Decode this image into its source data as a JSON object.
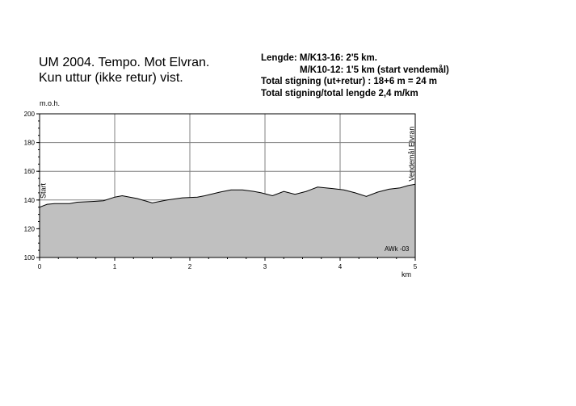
{
  "title_lines": [
    "UM 2004. Tempo.  Mot Elvran.",
    "Kun uttur (ikke retur) vist."
  ],
  "info_lines": [
    "Lengde: M/K13-16: 2'5 km.",
    "M/K10-12: 1'5 km (start vendemål)",
    "Total stigning (ut+retur) : 18+6 m = 24 m",
    "Total stigning/total lengde    2,4 m/km"
  ],
  "chart_data": {
    "type": "area",
    "ylabel": "m.o.h.",
    "xlabel": "km",
    "xlim": [
      0,
      5
    ],
    "ylim": [
      100,
      200
    ],
    "xticks": [
      "0",
      "1",
      "2",
      "3",
      "4",
      "5"
    ],
    "yticks": [
      "100",
      "120",
      "140",
      "160",
      "180",
      "200"
    ],
    "grid": true,
    "fill_color": "#c0c0c0",
    "annotations": [
      {
        "text": "Start",
        "x": 0.05
      },
      {
        "text": "Vendemål Elvran",
        "x": 4.95
      }
    ],
    "credit": "AWk -03",
    "x": [
      0.0,
      0.1,
      0.2,
      0.4,
      0.5,
      0.7,
      0.85,
      1.0,
      1.1,
      1.3,
      1.5,
      1.7,
      1.9,
      2.1,
      2.2,
      2.4,
      2.55,
      2.7,
      2.85,
      2.95,
      3.1,
      3.25,
      3.4,
      3.55,
      3.7,
      3.9,
      4.05,
      4.2,
      4.35,
      4.5,
      4.65,
      4.8,
      4.9,
      5.0
    ],
    "y": [
      135,
      137,
      137.5,
      137.5,
      138.5,
      139,
      139.5,
      142,
      143,
      141,
      138,
      140,
      141.5,
      142,
      143,
      145.5,
      147,
      147,
      146,
      145,
      143,
      146,
      144,
      146,
      149,
      148,
      147,
      145,
      142.5,
      145.5,
      147.5,
      148.5,
      150,
      151
    ]
  }
}
